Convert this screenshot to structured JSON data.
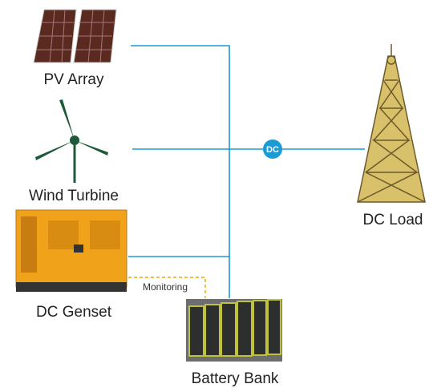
{
  "nodes": [
    {
      "label": "PV Array"
    },
    {
      "label": "Wind Turbine"
    },
    {
      "label": "DC Genset"
    },
    {
      "label": "Battery Bank"
    },
    {
      "label": "DC Load"
    }
  ],
  "bus": {
    "label": "DC"
  },
  "link": {
    "label": "Monitoring"
  }
}
